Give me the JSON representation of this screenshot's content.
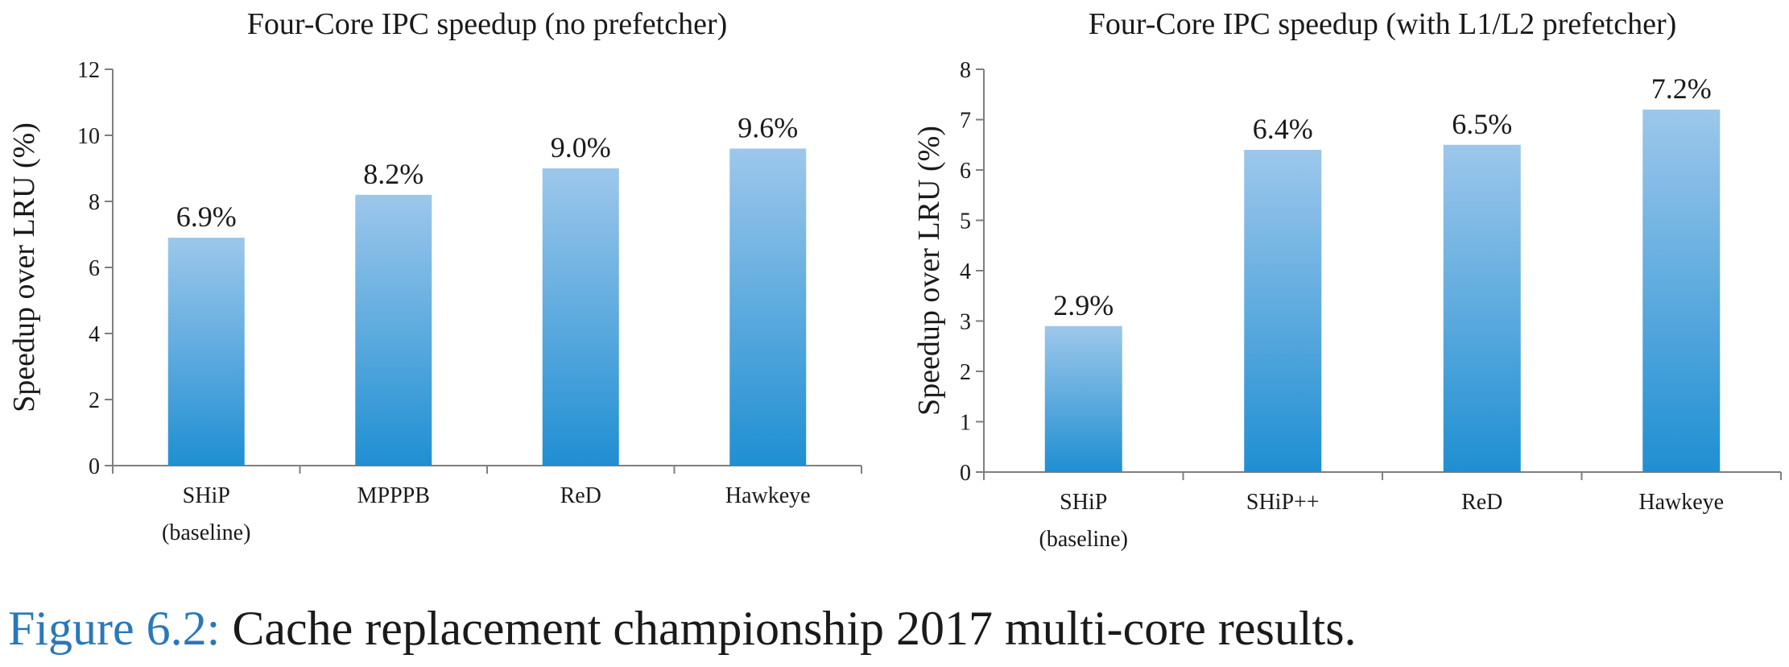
{
  "colors": {
    "bar_top": "#9dc7eb",
    "bar_bottom": "#1f8fd2",
    "axis": "#7f7f7f",
    "caption_label": "#2a78b8"
  },
  "chart_data": [
    {
      "type": "bar",
      "title": "Four-Core IPC speedup (no prefetcher)",
      "ylabel": "Speedup over LRU (%)",
      "xlabel": "",
      "categories": [
        [
          "SHiP",
          "(baseline)"
        ],
        [
          "MPPPB"
        ],
        [
          "ReD"
        ],
        [
          "Hawkeye"
        ]
      ],
      "values": [
        6.9,
        8.2,
        9.0,
        9.6
      ],
      "data_labels": [
        "6.9%",
        "8.2%",
        "9.0%",
        "9.6%"
      ],
      "ylim": [
        0,
        12
      ],
      "yticks": [
        0,
        2,
        4,
        6,
        8,
        10,
        12
      ],
      "grid": false,
      "legend": "none"
    },
    {
      "type": "bar",
      "title": "Four-Core IPC speedup (with L1/L2 prefetcher)",
      "ylabel": "Speedup over LRU (%)",
      "xlabel": "",
      "categories": [
        [
          "SHiP",
          "(baseline)"
        ],
        [
          "SHiP++"
        ],
        [
          "ReD"
        ],
        [
          "Hawkeye"
        ]
      ],
      "values": [
        2.9,
        6.4,
        6.5,
        7.2
      ],
      "data_labels": [
        "2.9%",
        "6.4%",
        "6.5%",
        "7.2%"
      ],
      "ylim": [
        0,
        8
      ],
      "yticks": [
        0,
        1,
        2,
        3,
        4,
        5,
        6,
        7,
        8
      ],
      "grid": false,
      "legend": "none"
    }
  ],
  "caption": {
    "label": "Figure 6.2:",
    "text": " Cache replacement championship 2017 multi-core results."
  }
}
